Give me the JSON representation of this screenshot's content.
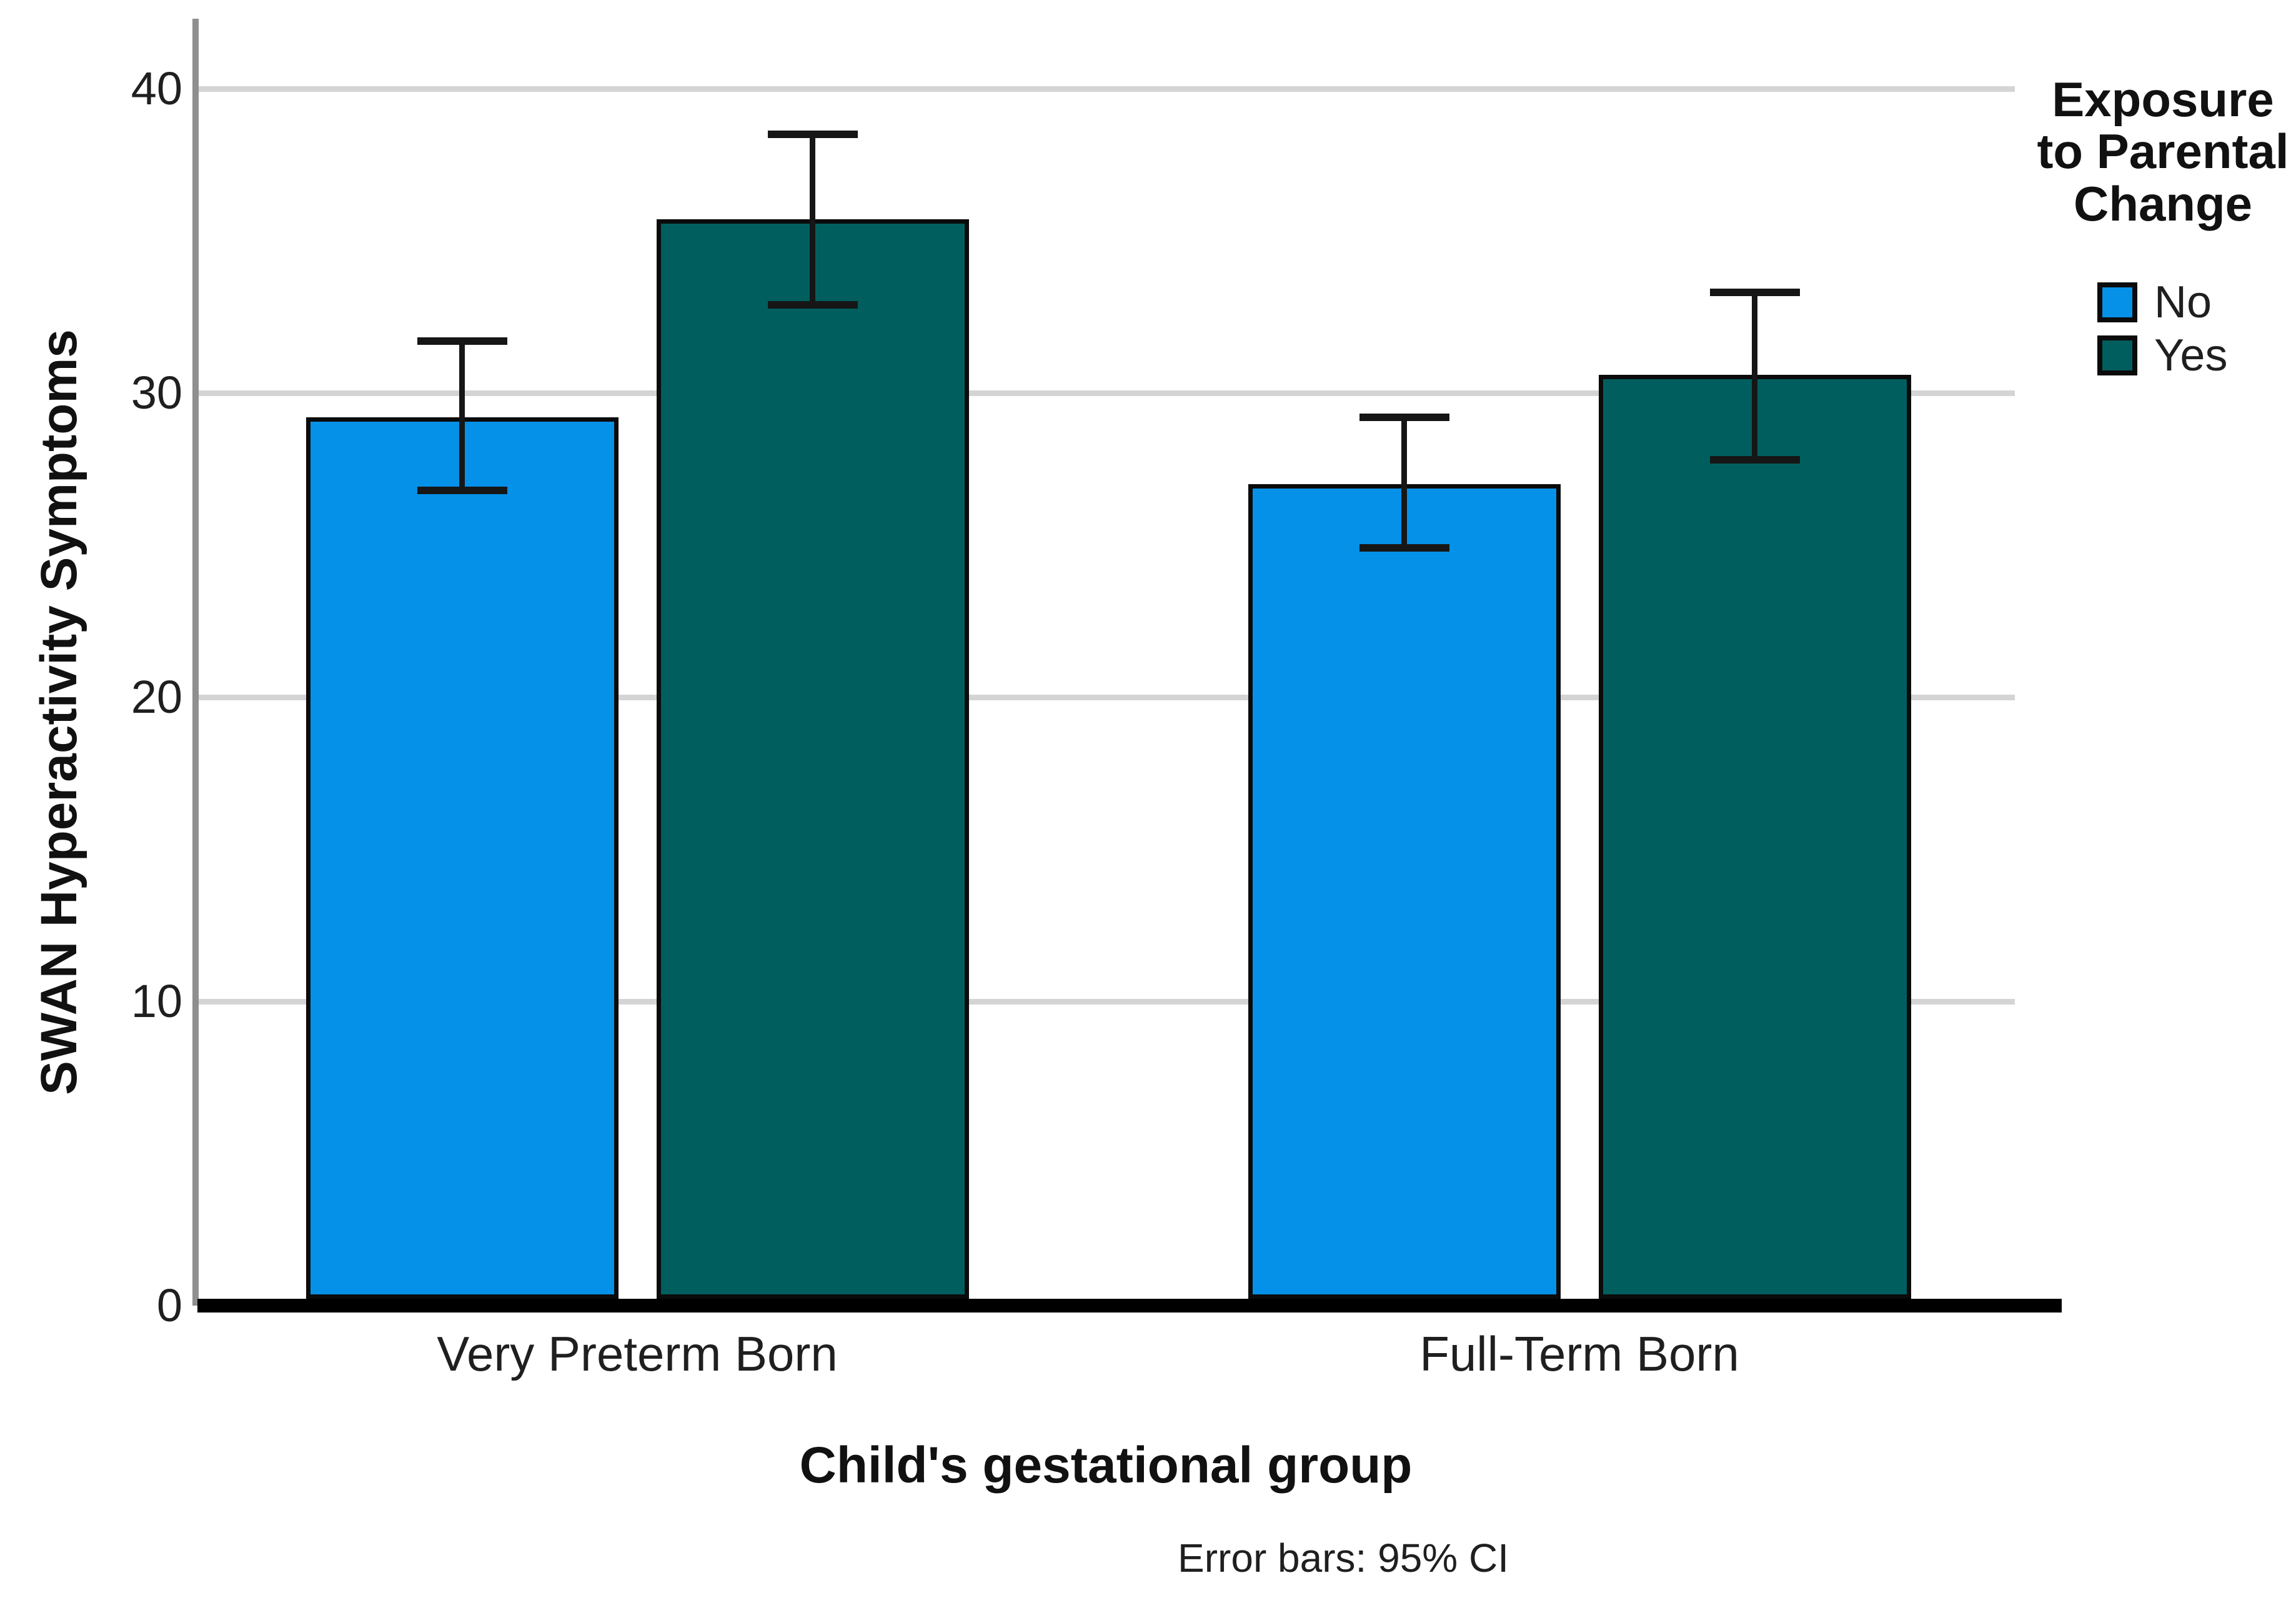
{
  "chart_data": {
    "type": "bar",
    "title": "",
    "categories": [
      "Very Preterm Born",
      "Full-Term Born"
    ],
    "series": [
      {
        "name": "No",
        "color": "#0591E8",
        "values": [
          29.2,
          27.0
        ],
        "ci_low": [
          26.8,
          24.9
        ],
        "ci_high": [
          31.7,
          29.2
        ]
      },
      {
        "name": "Yes",
        "color": "#005F5E",
        "values": [
          35.7,
          30.6
        ],
        "ci_low": [
          32.9,
          27.8
        ],
        "ci_high": [
          38.5,
          33.3
        ]
      }
    ],
    "xlabel": "Child's gestational group",
    "ylabel": "SWAN Hyperactivity Symptoms",
    "yticks": [
      0,
      10,
      20,
      30,
      40
    ],
    "ylim": [
      0,
      42.3
    ],
    "grid": true,
    "legend_title": "Exposure to Parental Change",
    "legend_position": "right",
    "error_note": "Error bars: 95% CI",
    "colors": {
      "gridline": "#d4d4d4",
      "axis": "#8f8f8f",
      "baseline": "#000000",
      "bar_outline": "#0b0b0b",
      "text": "#1f1f1f"
    }
  }
}
